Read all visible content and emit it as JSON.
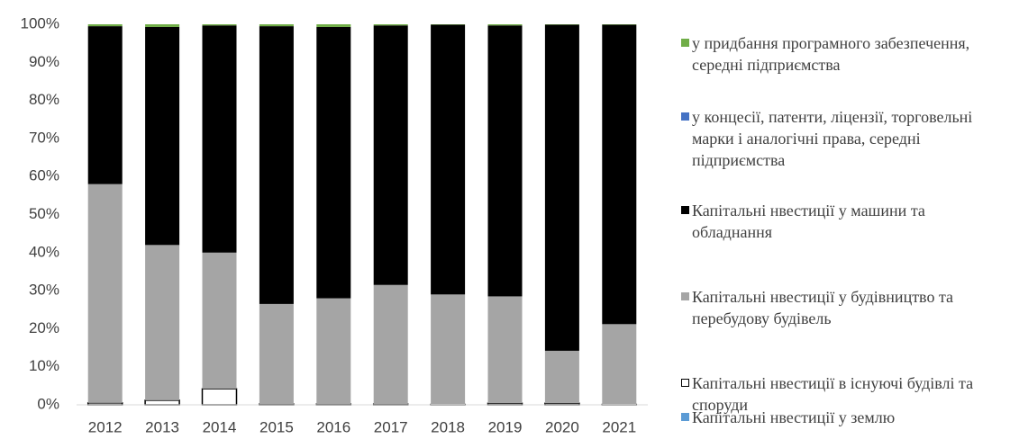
{
  "chart_data": {
    "type": "stacked_bar",
    "categories": [
      "2012",
      "2013",
      "2014",
      "2015",
      "2016",
      "2017",
      "2018",
      "2019",
      "2020",
      "2021"
    ],
    "series": [
      {
        "name": "Капітальні нвестиції у землю",
        "color": "#5b9bd5",
        "values": [
          0,
          0,
          0,
          0,
          0,
          0,
          0,
          0,
          0,
          0
        ]
      },
      {
        "name": "Капітальні нвестиції в існуючі будівлі та споруди",
        "color": "#ffffff",
        "values": [
          0.5,
          1.2,
          4.2,
          0.2,
          0.2,
          0.2,
          0.1,
          0.4,
          0.4,
          0.1
        ]
      },
      {
        "name": "Капітальні нвестиції у будівництво та перебудову будівель",
        "color": "#a5a5a5",
        "values": [
          57.5,
          40.8,
          35.8,
          26.3,
          27.8,
          31.3,
          28.9,
          28.1,
          13.8,
          21.1
        ]
      },
      {
        "name": "Капітальні нвестиції у машини та обладнання",
        "color": "#000000",
        "values": [
          41.5,
          57.3,
          59.7,
          73,
          71.3,
          68.2,
          70.9,
          71.2,
          85.7,
          78.7
        ]
      },
      {
        "name": "у концесії, патенти, ліцензії, торговельні марки і аналогічні права, середні підприємства",
        "color": "#4472c4",
        "values": [
          0,
          0,
          0,
          0,
          0,
          0,
          0,
          0,
          0,
          0
        ]
      },
      {
        "name": "у придбання програмного забезпечення, середні підприємства",
        "color": "#70ad47",
        "values": [
          0.5,
          0.7,
          0.3,
          0.5,
          0.7,
          0.3,
          0.1,
          0.3,
          0.1,
          0.1
        ]
      }
    ],
    "ylim": [
      0,
      100
    ],
    "yticks": [
      {
        "value": 0,
        "label": "0%"
      },
      {
        "value": 10,
        "label": "10%"
      },
      {
        "value": 20,
        "label": "20%"
      },
      {
        "value": 30,
        "label": "30%"
      },
      {
        "value": 40,
        "label": "40%"
      },
      {
        "value": 50,
        "label": "50%"
      },
      {
        "value": 60,
        "label": "60%"
      },
      {
        "value": 70,
        "label": "70%"
      },
      {
        "value": 80,
        "label": "80%"
      },
      {
        "value": 90,
        "label": "90%"
      },
      {
        "value": 100,
        "label": "100%"
      }
    ],
    "legend": "right"
  }
}
